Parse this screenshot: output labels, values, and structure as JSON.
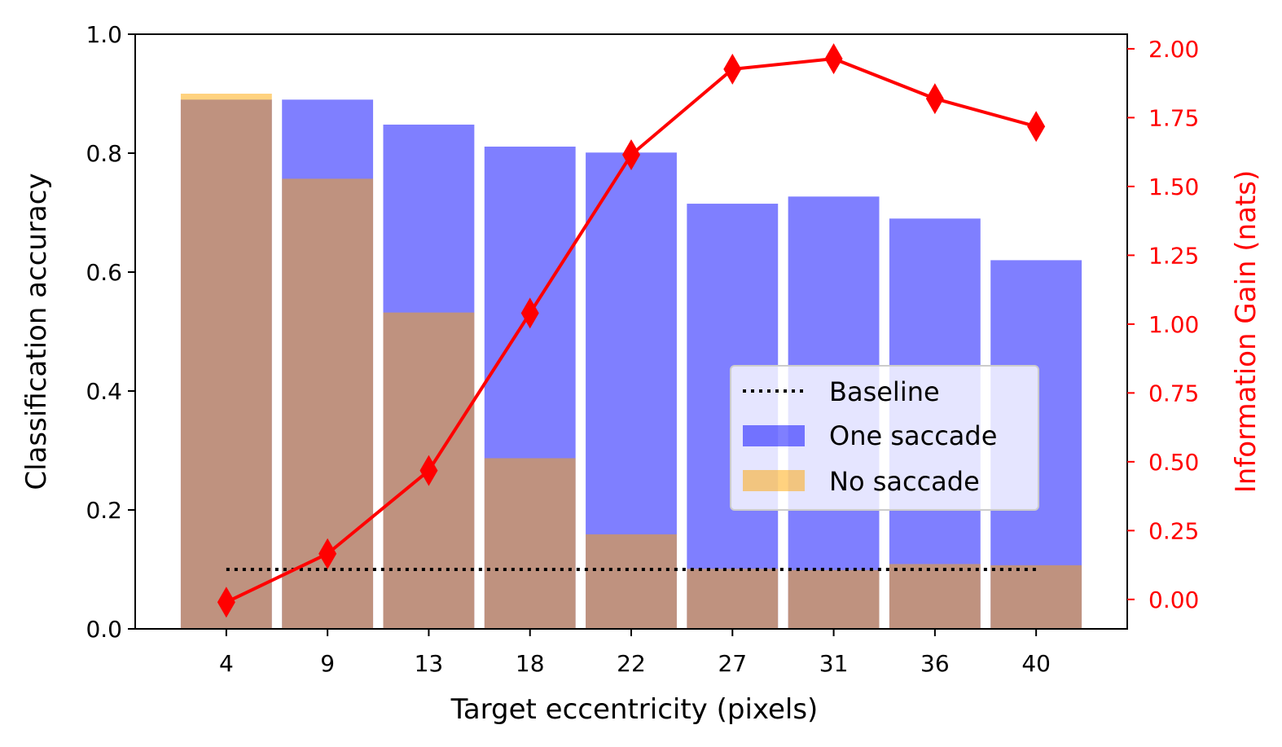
{
  "chart_data": {
    "type": "bar",
    "xlabel": "Target eccentricity (pixels)",
    "ylabel": "Classification accuracy",
    "y2label": "Information Gain (nats)",
    "categories": [
      "4",
      "9",
      "13",
      "18",
      "22",
      "27",
      "31",
      "36",
      "40"
    ],
    "ylim": [
      0,
      1.0
    ],
    "y2lim": [
      -0.107,
      2.053
    ],
    "yticks": [
      "0.0",
      "0.2",
      "0.4",
      "0.6",
      "0.8",
      "1.0"
    ],
    "y2ticks": [
      "0.00",
      "0.25",
      "0.50",
      "0.75",
      "1.00",
      "1.25",
      "1.50",
      "1.75",
      "2.00"
    ],
    "series": [
      {
        "name": "One saccade",
        "type": "bar",
        "color": "#0000ff",
        "alpha": 0.5,
        "values": [
          0.89,
          0.89,
          0.848,
          0.811,
          0.801,
          0.715,
          0.727,
          0.69,
          0.62
        ]
      },
      {
        "name": "No saccade",
        "type": "bar",
        "color": "#ffa500",
        "alpha": 0.5,
        "values": [
          0.9,
          0.757,
          0.532,
          0.287,
          0.159,
          0.101,
          0.099,
          0.109,
          0.107
        ]
      },
      {
        "name": "Baseline",
        "type": "line",
        "style": "dotted",
        "color": "#000000",
        "values": [
          0.1,
          0.1,
          0.1,
          0.1,
          0.1,
          0.1,
          0.1,
          0.1,
          0.1
        ]
      },
      {
        "name": "Information Gain",
        "type": "line",
        "axis": "right",
        "marker": "diamond",
        "color": "#ff0000",
        "values": [
          -0.01,
          0.166,
          0.468,
          1.04,
          1.615,
          1.926,
          1.964,
          1.819,
          1.718
        ]
      }
    ],
    "legend": {
      "placement": "center-right",
      "entries": [
        "Baseline",
        "One saccade",
        "No saccade"
      ]
    },
    "grid": false
  }
}
